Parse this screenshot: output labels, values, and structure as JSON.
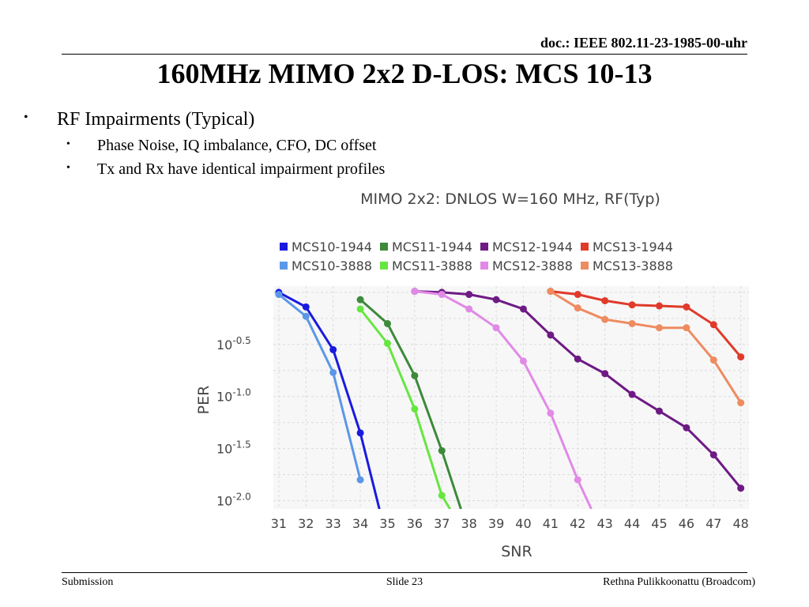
{
  "header": {
    "doc_id": "doc.: IEEE 802.11-23-1985-00-uhr"
  },
  "slide": {
    "title": "160MHz MIMO 2x2 D-LOS: MCS 10-13",
    "bullets": [
      {
        "text": "RF Impairments (Typical)",
        "sub": [
          "Phase Noise, IQ imbalance, CFO, DC offset",
          "Tx and Rx have identical impairment profiles"
        ]
      }
    ]
  },
  "footer": {
    "left": "Submission",
    "center": "Slide 23",
    "right": "Rethna Pulikkoonattu (Broadcom)"
  },
  "chart_data": {
    "type": "line",
    "title": "MIMO 2x2: DNLOS W=160 MHz, RF(Typ)",
    "xlabel": "SNR",
    "ylabel": "PER",
    "yscale": "log",
    "xlim": [
      30.8,
      48.3
    ],
    "ylim": [
      -2.08,
      0.06
    ],
    "x_ticks": [
      31,
      32,
      33,
      34,
      35,
      36,
      37,
      38,
      39,
      40,
      41,
      42,
      43,
      44,
      45,
      46,
      47,
      48
    ],
    "y_ticks": [
      {
        "value": -0.5,
        "base": "10",
        "exp": "-0.5"
      },
      {
        "value": -1.0,
        "base": "10",
        "exp": "-1.0"
      },
      {
        "value": -1.5,
        "base": "10",
        "exp": "-1.5"
      },
      {
        "value": -2.0,
        "base": "10",
        "exp": "-2.0"
      }
    ],
    "grid": true,
    "legend_position": "top",
    "series": [
      {
        "name": "MCS10-1944",
        "color": "#1a1adf",
        "x": [
          31,
          32,
          33,
          34,
          34.7
        ],
        "y": [
          0.0,
          -0.14,
          -0.55,
          -1.35,
          -2.08
        ]
      },
      {
        "name": "MCS11-1944",
        "color": "#3c8a3a",
        "x": [
          34,
          35,
          36,
          37,
          37.7
        ],
        "y": [
          -0.07,
          -0.3,
          -0.8,
          -1.52,
          -2.08
        ]
      },
      {
        "name": "MCS12-1944",
        "color": "#6e1a85",
        "x": [
          36,
          37,
          38,
          39,
          40,
          41,
          42,
          43,
          44,
          45,
          46,
          47,
          48
        ],
        "y": [
          0.01,
          0.0,
          -0.02,
          -0.07,
          -0.16,
          -0.41,
          -0.64,
          -0.78,
          -0.98,
          -1.14,
          -1.3,
          -1.56,
          -1.88
        ]
      },
      {
        "name": "MCS13-1944",
        "color": "#e03a2a",
        "x": [
          41,
          42,
          43,
          44,
          45,
          46,
          47,
          48
        ],
        "y": [
          0.01,
          -0.02,
          -0.08,
          -0.12,
          -0.13,
          -0.14,
          -0.31,
          -0.62
        ]
      },
      {
        "name": "MCS10-3888",
        "color": "#5b97e8",
        "x": [
          31,
          32,
          33,
          34
        ],
        "y": [
          -0.02,
          -0.23,
          -0.77,
          -1.8
        ]
      },
      {
        "name": "MCS11-3888",
        "color": "#66e640",
        "x": [
          34,
          35,
          36,
          37,
          37.3
        ],
        "y": [
          -0.16,
          -0.49,
          -1.12,
          -1.95,
          -2.08
        ]
      },
      {
        "name": "MCS12-3888",
        "color": "#e08ae6",
        "x": [
          36,
          37,
          38,
          39,
          40,
          41,
          42,
          42.5
        ],
        "y": [
          0.01,
          -0.02,
          -0.16,
          -0.34,
          -0.66,
          -1.16,
          -1.8,
          -2.08
        ]
      },
      {
        "name": "MCS13-3888",
        "color": "#ee8b60",
        "x": [
          41,
          42,
          43,
          44,
          45,
          46,
          47,
          48
        ],
        "y": [
          0.01,
          -0.15,
          -0.26,
          -0.3,
          -0.34,
          -0.34,
          -0.65,
          -1.06
        ]
      }
    ]
  }
}
